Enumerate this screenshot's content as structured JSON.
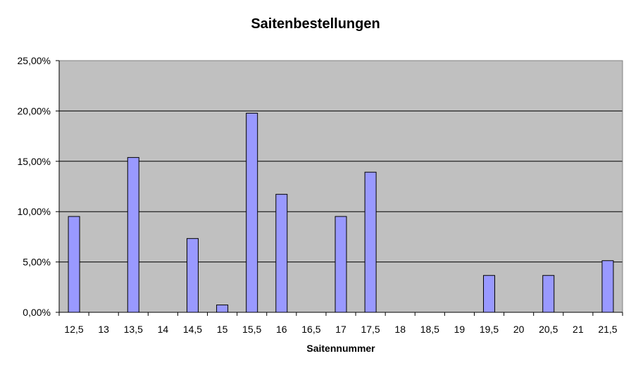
{
  "chart_data": {
    "type": "bar",
    "title": "Saitenbestellungen",
    "xlabel": "Saitennummer",
    "ylabel": "",
    "categories": [
      "12,5",
      "13",
      "13,5",
      "14",
      "14,5",
      "15",
      "15,5",
      "16",
      "16,5",
      "17",
      "17,5",
      "18",
      "18,5",
      "19",
      "19,5",
      "20",
      "20,5",
      "21",
      "21,5"
    ],
    "values": [
      9.52,
      0,
      15.38,
      0,
      7.33,
      0.73,
      19.78,
      11.72,
      0,
      9.52,
      13.92,
      0,
      0,
      0,
      3.66,
      0,
      3.66,
      0,
      5.13
    ],
    "ylim": [
      0,
      25
    ],
    "yticks": [
      0,
      5,
      10,
      15,
      20,
      25
    ],
    "ytick_labels": [
      "0,00%",
      "5,00%",
      "10,00%",
      "15,00%",
      "20,00%",
      "25,00%"
    ],
    "grid": true,
    "plot_background": "#c0c0c0",
    "bar_color": "#9999ff",
    "bar_edge": "#000000"
  }
}
